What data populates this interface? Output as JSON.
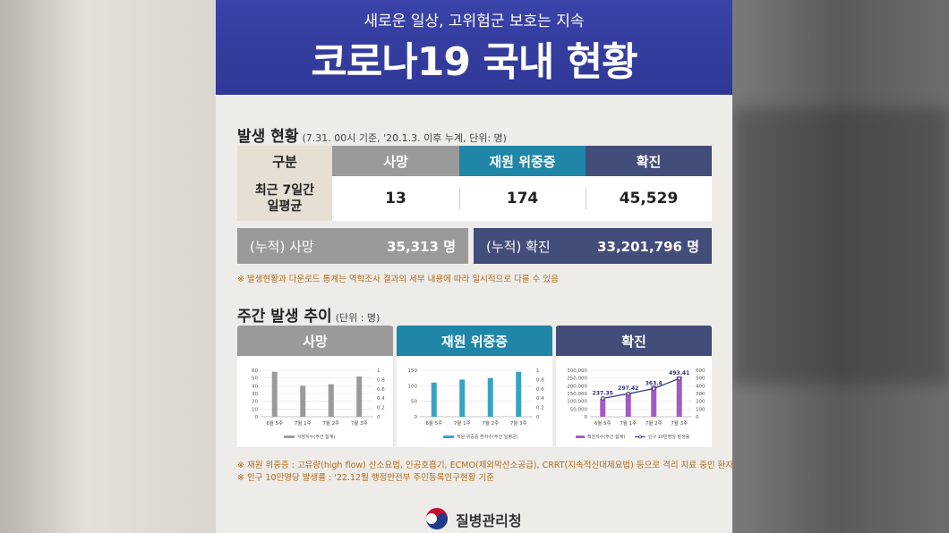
{
  "header": {
    "subtitle": "새로운 일상, 고위험군 보호는 지속",
    "title": "코로나19 국내 현황"
  },
  "occurrence": {
    "title": "발생 현황",
    "subtitle": "(7.31. 00시 기준, '20.1.3. 이후 누계, 단위: 명)",
    "headers": [
      "구분",
      "사망",
      "재원 위중증",
      "확진"
    ],
    "row_label": "최근 7일간\n일평균",
    "row_label_line1": "최근 7일간",
    "row_label_line2": "일평균",
    "values": [
      "13",
      "174",
      "45,529"
    ],
    "cum_death_label": "(누적) 사망",
    "cum_death_value": "35,313 명",
    "cum_confirmed_label": "(누적) 확진",
    "cum_confirmed_value": "33,201,796 명",
    "note": "※ 발생현황과 다운로드 통계는 역학조사 결과의 세부 내용에 따라 일시적으로 다를 수 있음"
  },
  "weekly": {
    "title": "주간 발생 추이",
    "subtitle": "(단위 : 명)"
  },
  "chart_data": [
    {
      "type": "bar",
      "title": "사망",
      "categories": [
        "6월 5주",
        "7월 1주",
        "7월 2주",
        "7월 3주"
      ],
      "series": [
        {
          "name": "사망자수(주간 합계)",
          "values": [
            58,
            40,
            42,
            52
          ]
        }
      ],
      "ylim": [
        0,
        60
      ],
      "yticks": [
        "60",
        "50",
        "40",
        "30",
        "20",
        "10",
        "0"
      ],
      "y2ticks": [
        "1",
        "0.8",
        "0.6",
        "0.4",
        "0.2",
        "0"
      ],
      "legend": "bottom",
      "color": "#9a9a9a"
    },
    {
      "type": "bar",
      "title": "재원 위중증",
      "categories": [
        "6월 5주",
        "7월 1주",
        "7월 2주",
        "7월 3주"
      ],
      "series": [
        {
          "name": "재원 위중증 환자수(주간 일평균)",
          "values": [
            110,
            120,
            125,
            145
          ]
        }
      ],
      "ylim": [
        0,
        150
      ],
      "yticks": [
        "150",
        "100",
        "50",
        "0"
      ],
      "y2ticks": [
        "1",
        "0.8",
        "0.6",
        "0.4",
        "0.2",
        "0"
      ],
      "legend": "bottom",
      "color": "#37a3c4"
    },
    {
      "type": "bar+line",
      "title": "확진",
      "categories": [
        "6월 5주",
        "7월 1주",
        "7월 2주",
        "7월 3주"
      ],
      "series": [
        {
          "name": "확진자수(주간 합계)",
          "type": "bar",
          "values": [
            115000,
            152000,
            199000,
            260000
          ]
        },
        {
          "name": "인구 10만명당 발생률",
          "type": "line",
          "values": [
            237.35,
            297.42,
            363.4,
            493.41
          ]
        }
      ],
      "ylim": [
        0,
        300000
      ],
      "y2lim": [
        0,
        600
      ],
      "yticks": [
        "300,000",
        "250,000",
        "200,000",
        "150,000",
        "100,000",
        "50,000",
        "0"
      ],
      "y2ticks": [
        "600",
        "500",
        "400",
        "300",
        "200",
        "100",
        "0"
      ],
      "data_labels": [
        "237.35",
        "297.42",
        "363.4",
        "493.41"
      ],
      "legend": "bottom",
      "colors": {
        "bar": "#a45ac4",
        "line": "#2d357a"
      }
    }
  ],
  "notes": [
    "※ 재원 위중증 : 고유량(high flow) 산소요법, 인공호흡기, ECMO(체외막산소공급), CRRT(지속적신대체요법) 등으로 격리 치료 중인 환자",
    "※ 인구 10만명당 발생률 : '22.12월 행정안전부 주민등록인구현황 기준"
  ],
  "logo": {
    "text": "질병관리청"
  },
  "colors": {
    "header_bg": "#3a43a8",
    "gray": "#9a9a9a",
    "teal": "#1f86a8",
    "navy": "#434d7a",
    "beige": "#e5dfd4"
  }
}
